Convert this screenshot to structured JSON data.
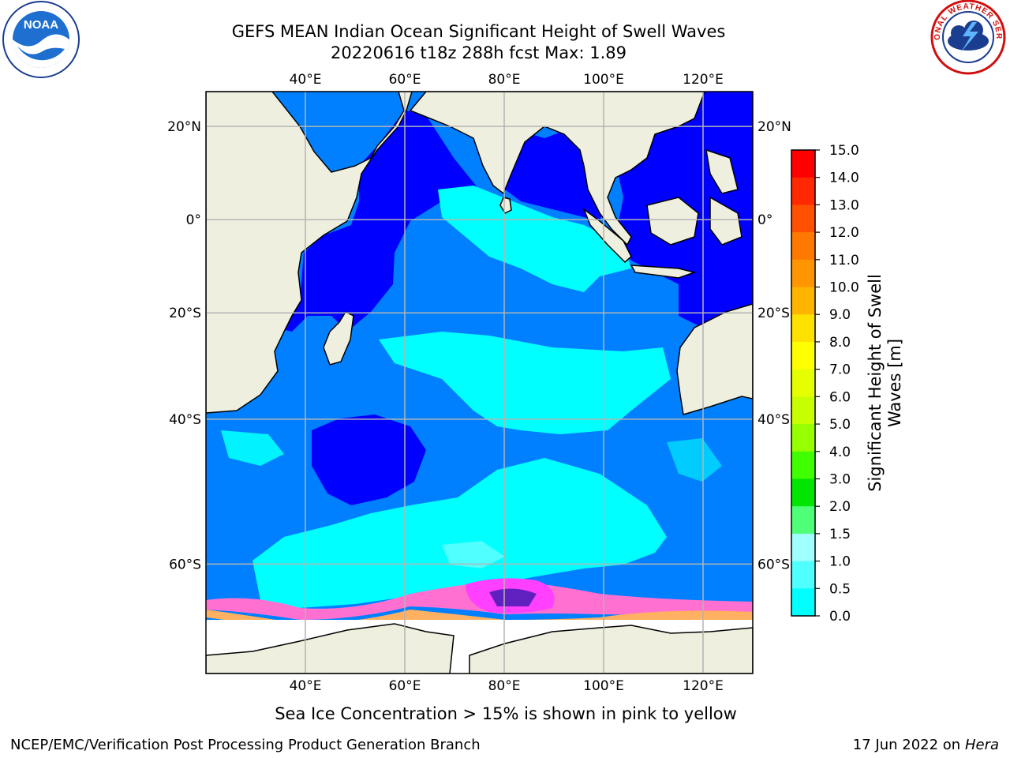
{
  "title": {
    "line1": "GEFS MEAN Indian Ocean Significant Height of Swell Waves",
    "line2": "20220616 t18z 288h fcst   Max: 1.89"
  },
  "logos": {
    "left": {
      "icon": "noaa-logo",
      "text": "NOAA"
    },
    "right": {
      "icon": "national-weather-service-logo",
      "text": "NATIONAL WEATHER SERVICE"
    }
  },
  "map": {
    "lon_ticks": [
      "40°E",
      "60°E",
      "80°E",
      "100°E",
      "120°E"
    ],
    "lon_values": [
      40,
      60,
      80,
      100,
      120
    ],
    "lat_ticks": [
      "20°N",
      "0°",
      "20°S",
      "40°S",
      "60°S"
    ],
    "lat_values": [
      20,
      0,
      -20,
      -40,
      -60
    ],
    "extent": {
      "lon": [
        20,
        130
      ],
      "lat": [
        -70,
        27
      ]
    },
    "grid": true,
    "colors": {
      "land": "#efefdf",
      "coast": "#000000",
      "grid": "#b4b4b4"
    }
  },
  "colorbar": {
    "label_line1": "Significant Height of Swell",
    "label_line2": "Waves [m]",
    "ticks": [
      "15.0",
      "14.0",
      "13.0",
      "12.0",
      "11.0",
      "10.0",
      "9.0",
      "8.0",
      "7.0",
      "6.0",
      "5.0",
      "4.0",
      "3.0",
      "2.0",
      "1.5",
      "1.0",
      "0.5",
      "0.0"
    ],
    "colors_top_to_bottom": [
      "#ff0000",
      "#ff2800",
      "#ff5000",
      "#ff7800",
      "#ff9600",
      "#ffb400",
      "#ffe100",
      "#ffff00",
      "#e6ff00",
      "#c8ff00",
      "#96ff00",
      "#40ff00",
      "#00e600",
      "#50ff78",
      "#a0ffff",
      "#50ffff",
      "#00ffff",
      "#0080ff",
      "#0000ff"
    ]
  },
  "caption": "Sea Ice Concentration > 15% is shown in pink to yellow",
  "footer": {
    "left": "NCEP/EMC/Verification Post Processing Product Generation Branch",
    "right_date": "17 Jun 2022 on",
    "right_machine": "Hera"
  }
}
